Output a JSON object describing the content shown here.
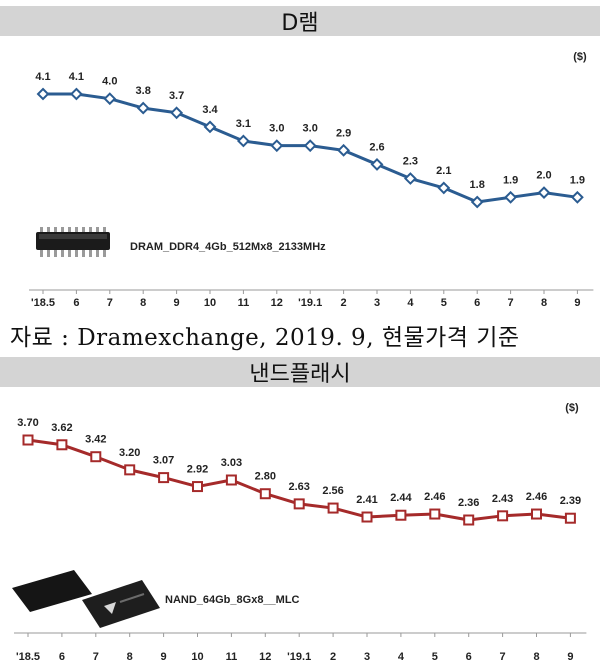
{
  "source_note": "자료 : Dramexchange, 2019. 9, 현물가격 기준",
  "chart_data": [
    {
      "type": "line",
      "title": "D램",
      "unit": "($)",
      "product": "DRAM_DDR4_4Gb_512Mx8_2133MHz",
      "categories": [
        "'18.5",
        "6",
        "7",
        "8",
        "9",
        "10",
        "11",
        "12",
        "'19.1",
        "2",
        "3",
        "4",
        "5",
        "6",
        "7",
        "8",
        "9"
      ],
      "values": [
        4.1,
        4.1,
        4.0,
        3.8,
        3.7,
        3.4,
        3.1,
        3.0,
        3.0,
        2.9,
        2.6,
        2.3,
        2.1,
        1.8,
        1.9,
        2.0,
        1.9
      ],
      "value_labels": [
        "4.1",
        "4.1",
        "4.0",
        "3.8",
        "3.7",
        "3.4",
        "3.1",
        "3.0",
        "3.0",
        "2.9",
        "2.6",
        "2.3",
        "2.1",
        "1.8",
        "1.9",
        "2.0",
        "1.9"
      ],
      "color": "#2b5c91",
      "marker": "diamond",
      "ylim": [
        1.6,
        4.3
      ]
    },
    {
      "type": "line",
      "title": "낸드플래시",
      "unit": "($)",
      "product": "NAND_64Gb_8Gx8__MLC",
      "categories": [
        "'18.5",
        "6",
        "7",
        "8",
        "9",
        "10",
        "11",
        "12",
        "'19.1",
        "2",
        "3",
        "4",
        "5",
        "6",
        "7",
        "8",
        "9"
      ],
      "values": [
        3.7,
        3.62,
        3.42,
        3.2,
        3.07,
        2.92,
        3.03,
        2.8,
        2.63,
        2.56,
        2.41,
        2.44,
        2.46,
        2.36,
        2.43,
        2.46,
        2.39
      ],
      "value_labels": [
        "3.70",
        "3.62",
        "3.42",
        "3.20",
        "3.07",
        "2.92",
        "3.03",
        "2.80",
        "2.63",
        "2.56",
        "2.41",
        "2.44",
        "2.46",
        "2.36",
        "2.43",
        "2.46",
        "2.39"
      ],
      "color": "#a52a2a",
      "marker": "square",
      "ylim": [
        2.2,
        3.85
      ]
    }
  ]
}
